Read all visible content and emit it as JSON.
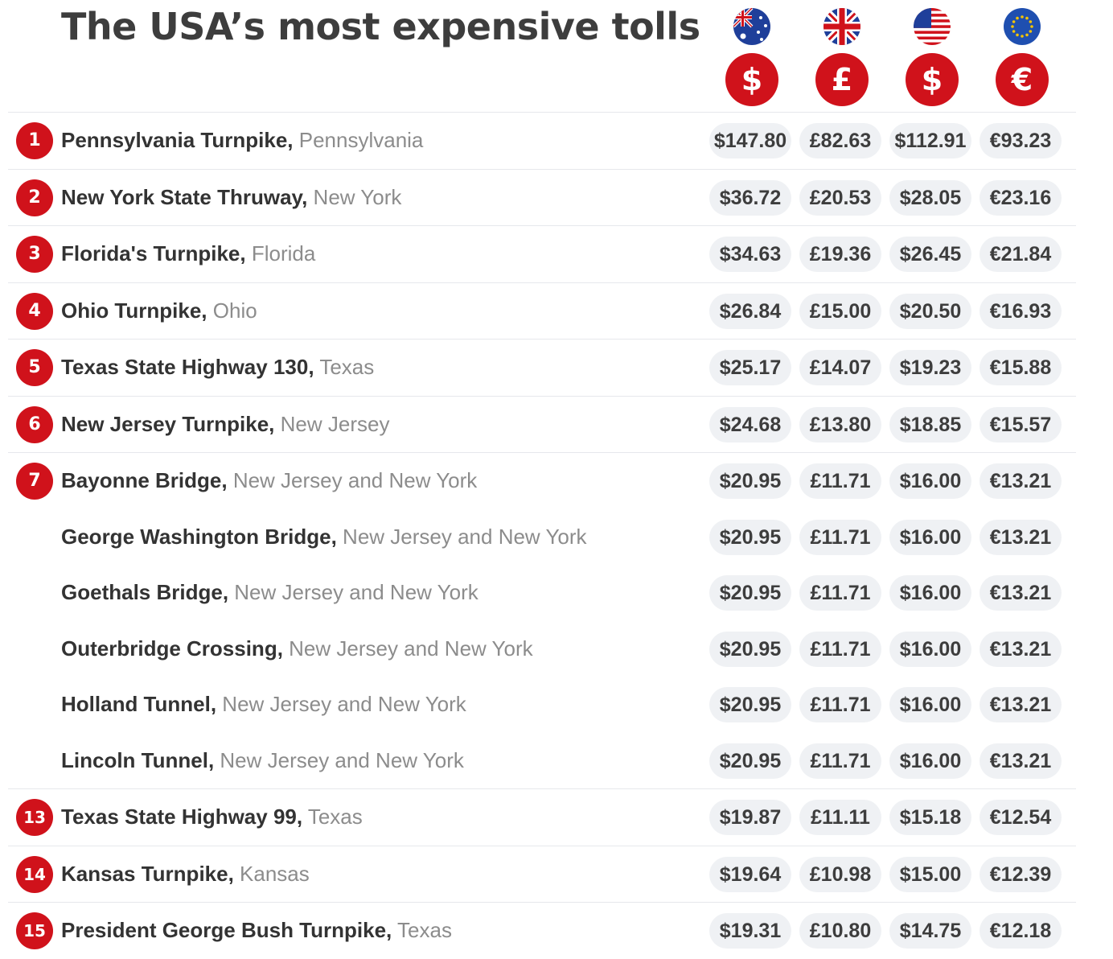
{
  "chart_data": {
    "type": "table",
    "title": "The USA’s most expensive tolls",
    "columns": [
      {
        "flag": "australia-flag-icon",
        "symbol": "$",
        "currency": "AUD"
      },
      {
        "flag": "uk-flag-icon",
        "symbol": "£",
        "currency": "GBP"
      },
      {
        "flag": "usa-flag-icon",
        "symbol": "$",
        "currency": "USD"
      },
      {
        "flag": "eu-flag-icon",
        "symbol": "€",
        "currency": "EUR"
      }
    ],
    "rows": [
      {
        "rank": "1",
        "road": "Pennsylvania Turnpike,",
        "state": "Pennsylvania",
        "values": [
          "$147.80",
          "£82.63",
          "$112.91",
          "€93.23"
        ]
      },
      {
        "rank": "2",
        "road": "New York State Thruway,",
        "state": "New York",
        "values": [
          "$36.72",
          "£20.53",
          "$28.05",
          "€23.16"
        ]
      },
      {
        "rank": "3",
        "road": "Florida's Turnpike,",
        "state": "Florida",
        "values": [
          "$34.63",
          "£19.36",
          "$26.45",
          "€21.84"
        ]
      },
      {
        "rank": "4",
        "road": "Ohio Turnpike,",
        "state": "Ohio",
        "values": [
          "$26.84",
          "£15.00",
          "$20.50",
          "€16.93"
        ]
      },
      {
        "rank": "5",
        "road": "Texas State Highway 130,",
        "state": "Texas",
        "values": [
          "$25.17",
          "£14.07",
          "$19.23",
          "€15.88"
        ]
      },
      {
        "rank": "6",
        "road": "New Jersey Turnpike,",
        "state": "New Jersey",
        "values": [
          "$24.68",
          "£13.80",
          "$18.85",
          "€15.57"
        ]
      },
      {
        "rank": "7",
        "road": "Bayonne Bridge,",
        "state": "New Jersey and New York",
        "values": [
          "$20.95",
          "£11.71",
          "$16.00",
          "€13.21"
        ]
      },
      {
        "rank": "",
        "road": "George Washington Bridge,",
        "state": "New Jersey and New York",
        "values": [
          "$20.95",
          "£11.71",
          "$16.00",
          "€13.21"
        ]
      },
      {
        "rank": "",
        "road": "Goethals Bridge,",
        "state": "New Jersey and New York",
        "values": [
          "$20.95",
          "£11.71",
          "$16.00",
          "€13.21"
        ]
      },
      {
        "rank": "",
        "road": "Outerbridge Crossing,",
        "state": "New Jersey and New York",
        "values": [
          "$20.95",
          "£11.71",
          "$16.00",
          "€13.21"
        ]
      },
      {
        "rank": "",
        "road": "Holland Tunnel,",
        "state": "New Jersey and New York",
        "values": [
          "$20.95",
          "£11.71",
          "$16.00",
          "€13.21"
        ]
      },
      {
        "rank": "",
        "road": "Lincoln Tunnel,",
        "state": "New Jersey and New York",
        "values": [
          "$20.95",
          "£11.71",
          "$16.00",
          "€13.21"
        ]
      },
      {
        "rank": "13",
        "road": "Texas State Highway 99,",
        "state": "Texas",
        "values": [
          "$19.87",
          "£11.11",
          "$15.18",
          "€12.54"
        ]
      },
      {
        "rank": "14",
        "road": "Kansas Turnpike,",
        "state": "Kansas",
        "values": [
          "$19.64",
          "£10.98",
          "$15.00",
          "€12.39"
        ]
      },
      {
        "rank": "15",
        "road": "President George Bush Turnpike,",
        "state": "Texas",
        "values": [
          "$19.31",
          "£10.80",
          "$14.75",
          "€12.18"
        ]
      }
    ]
  },
  "colors": {
    "accent": "#d0121b",
    "title": "#3d3d3d",
    "road_text": "#333333",
    "state_text": "#8c8c8c",
    "pill": "#eff1f4",
    "stripe": "#f4f5f7"
  }
}
